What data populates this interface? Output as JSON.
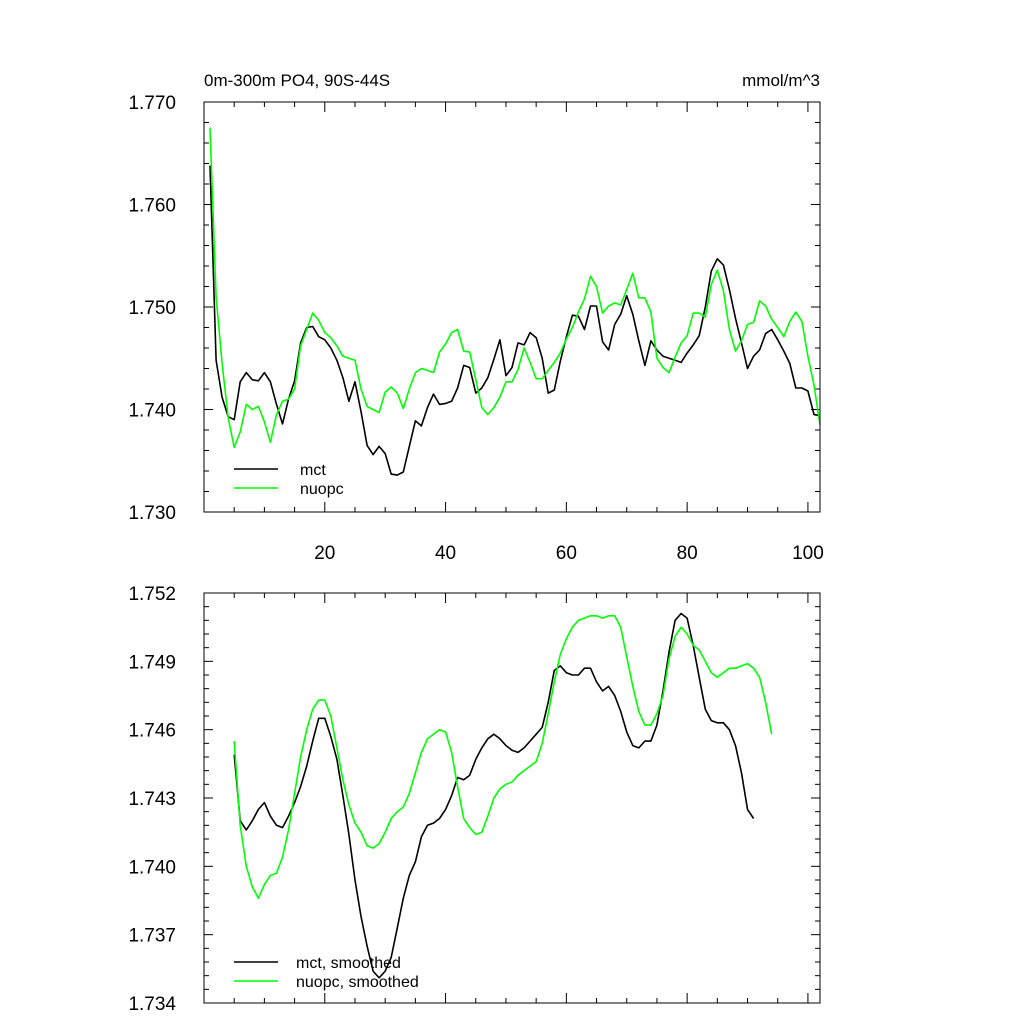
{
  "chart_data": [
    {
      "type": "line",
      "title_left": "0m-300m PO4, 90S-44S",
      "title_right": "mmol/m^3",
      "xlabel": "",
      "ylabel": "",
      "xlim": [
        0,
        102
      ],
      "ylim": [
        1.73,
        1.77
      ],
      "y_ticks": [
        1.73,
        1.74,
        1.75,
        1.76,
        1.77
      ],
      "y_tick_labels": [
        "1.730",
        "1.740",
        "1.750",
        "1.760",
        "1.770"
      ],
      "x_ticks": [
        20,
        40,
        60,
        80,
        100
      ],
      "x_tick_labels": [
        "20",
        "40",
        "60",
        "80",
        "100"
      ],
      "legend_position": "bottom-left",
      "series": [
        {
          "name": "mct",
          "color": "#000000",
          "x_start": 1,
          "values": [
            1.7638,
            1.7448,
            1.7412,
            1.7393,
            1.739,
            1.7427,
            1.7436,
            1.7429,
            1.7428,
            1.7436,
            1.7427,
            1.7405,
            1.7386,
            1.741,
            1.7428,
            1.7465,
            1.748,
            1.7481,
            1.7471,
            1.7468,
            1.746,
            1.7448,
            1.7431,
            1.7408,
            1.7427,
            1.7398,
            1.7365,
            1.7356,
            1.7364,
            1.7357,
            1.7337,
            1.7336,
            1.7339,
            1.7364,
            1.7389,
            1.7384,
            1.7402,
            1.7415,
            1.7405,
            1.7406,
            1.7408,
            1.7421,
            1.7443,
            1.7441,
            1.7416,
            1.7421,
            1.7431,
            1.7449,
            1.7468,
            1.7433,
            1.7441,
            1.7465,
            1.7463,
            1.7475,
            1.747,
            1.745,
            1.7416,
            1.7419,
            1.7447,
            1.7471,
            1.7492,
            1.7491,
            1.7478,
            1.7501,
            1.7501,
            1.7466,
            1.7458,
            1.7483,
            1.7493,
            1.7511,
            1.7493,
            1.7467,
            1.7443,
            1.7467,
            1.7458,
            1.7452,
            1.745,
            1.7448,
            1.7446,
            1.7455,
            1.7463,
            1.7472,
            1.75,
            1.7535,
            1.7547,
            1.7541,
            1.7517,
            1.7489,
            1.7465,
            1.744,
            1.7452,
            1.7458,
            1.7474,
            1.7478,
            1.7468,
            1.7457,
            1.7445,
            1.7421,
            1.7421,
            1.7418,
            1.7395,
            1.7394
          ]
        },
        {
          "name": "nuopc",
          "color": "#00ff00",
          "x_start": 1,
          "values": [
            1.7675,
            1.751,
            1.7445,
            1.7392,
            1.7363,
            1.7378,
            1.7405,
            1.74,
            1.7403,
            1.7388,
            1.7368,
            1.7395,
            1.7408,
            1.741,
            1.742,
            1.7462,
            1.7478,
            1.7494,
            1.7487,
            1.7475,
            1.747,
            1.7462,
            1.7452,
            1.745,
            1.7448,
            1.742,
            1.7403,
            1.74,
            1.7397,
            1.7417,
            1.7422,
            1.7416,
            1.7401,
            1.742,
            1.7436,
            1.744,
            1.7438,
            1.7436,
            1.7456,
            1.7464,
            1.7475,
            1.7478,
            1.7457,
            1.7456,
            1.7429,
            1.7402,
            1.7395,
            1.7402,
            1.7412,
            1.7427,
            1.7427,
            1.7439,
            1.746,
            1.7446,
            1.743,
            1.743,
            1.7438,
            1.7446,
            1.7455,
            1.7469,
            1.748,
            1.7495,
            1.7508,
            1.753,
            1.752,
            1.7494,
            1.7501,
            1.7504,
            1.7502,
            1.7517,
            1.7533,
            1.7509,
            1.7509,
            1.7495,
            1.745,
            1.7441,
            1.7436,
            1.7451,
            1.7465,
            1.7472,
            1.7494,
            1.7494,
            1.749,
            1.7522,
            1.7536,
            1.7516,
            1.7478,
            1.7457,
            1.7467,
            1.7483,
            1.7485,
            1.7506,
            1.7501,
            1.7488,
            1.748,
            1.7471,
            1.7486,
            1.7495,
            1.7486,
            1.7452,
            1.7424,
            1.7385
          ]
        }
      ]
    },
    {
      "type": "line",
      "title_left": "",
      "title_right": "",
      "xlabel": "",
      "ylabel": "",
      "xlim": [
        0,
        102
      ],
      "ylim": [
        1.734,
        1.752
      ],
      "y_ticks": [
        1.734,
        1.737,
        1.74,
        1.743,
        1.746,
        1.749,
        1.752
      ],
      "y_tick_labels": [
        "1.734",
        "1.737",
        "1.740",
        "1.743",
        "1.746",
        "1.749",
        "1.752"
      ],
      "x_ticks": [
        20,
        40,
        60,
        80,
        100
      ],
      "x_tick_labels": [],
      "legend_position": "bottom-left",
      "series": [
        {
          "name": "mct, smoothed",
          "color": "#000000",
          "x_start": 5,
          "values": [
            1.7449,
            1.742,
            1.7416,
            1.742,
            1.7425,
            1.7428,
            1.7422,
            1.7418,
            1.7417,
            1.7422,
            1.7428,
            1.7435,
            1.7444,
            1.7455,
            1.7465,
            1.7465,
            1.7457,
            1.7447,
            1.7431,
            1.7414,
            1.7394,
            1.7378,
            1.7365,
            1.7354,
            1.7351,
            1.7354,
            1.736,
            1.7373,
            1.7386,
            1.7396,
            1.7402,
            1.7413,
            1.7418,
            1.7419,
            1.7421,
            1.7425,
            1.7431,
            1.7439,
            1.7438,
            1.744,
            1.7447,
            1.7452,
            1.7456,
            1.7458,
            1.7456,
            1.7453,
            1.7451,
            1.745,
            1.7452,
            1.7455,
            1.7458,
            1.7461,
            1.7472,
            1.7486,
            1.7488,
            1.7485,
            1.7484,
            1.7484,
            1.7487,
            1.7487,
            1.7481,
            1.7477,
            1.7479,
            1.7475,
            1.7468,
            1.7459,
            1.7453,
            1.7452,
            1.7455,
            1.7455,
            1.7462,
            1.7477,
            1.7494,
            1.7508,
            1.7511,
            1.7509,
            1.7497,
            1.7483,
            1.7469,
            1.7464,
            1.7463,
            1.7463,
            1.746,
            1.7453,
            1.7441,
            1.7425,
            1.7421
          ]
        },
        {
          "name": "nuopc, smoothed",
          "color": "#00ff00",
          "x_start": 5,
          "values": [
            1.7455,
            1.7418,
            1.74,
            1.7391,
            1.7386,
            1.7392,
            1.7396,
            1.7397,
            1.7404,
            1.7416,
            1.7432,
            1.7448,
            1.746,
            1.7469,
            1.7473,
            1.7473,
            1.7466,
            1.7452,
            1.7438,
            1.7427,
            1.7419,
            1.7415,
            1.7409,
            1.7408,
            1.741,
            1.7415,
            1.7421,
            1.7424,
            1.7426,
            1.7432,
            1.7441,
            1.745,
            1.7456,
            1.7458,
            1.746,
            1.7459,
            1.745,
            1.7435,
            1.7421,
            1.7417,
            1.7414,
            1.7415,
            1.7422,
            1.743,
            1.7434,
            1.7436,
            1.7437,
            1.744,
            1.7442,
            1.7444,
            1.7446,
            1.7454,
            1.7467,
            1.7481,
            1.7493,
            1.75,
            1.7505,
            1.7508,
            1.7509,
            1.751,
            1.751,
            1.7509,
            1.751,
            1.751,
            1.7505,
            1.7492,
            1.7479,
            1.7468,
            1.7462,
            1.7462,
            1.7467,
            1.7475,
            1.7491,
            1.7501,
            1.7505,
            1.7502,
            1.7497,
            1.7495,
            1.749,
            1.7485,
            1.7483,
            1.7485,
            1.7487,
            1.7487,
            1.7488,
            1.7489,
            1.7487,
            1.7483,
            1.7472,
            1.7458
          ]
        }
      ]
    }
  ]
}
